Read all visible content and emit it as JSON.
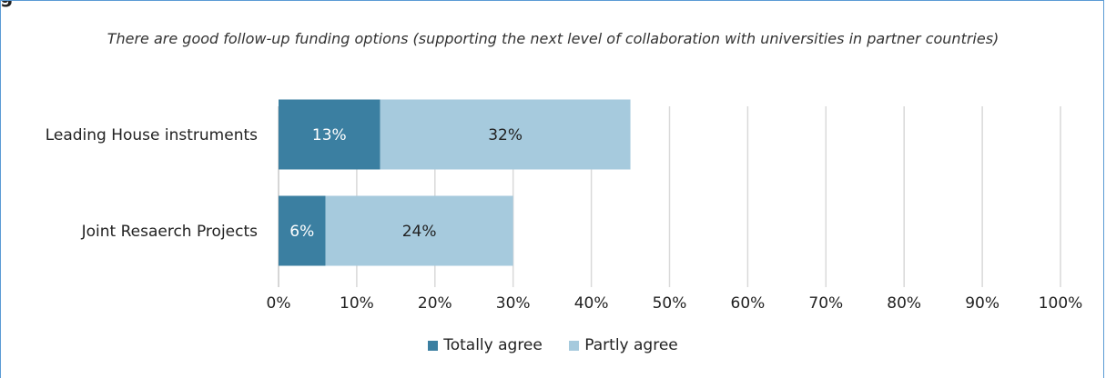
{
  "heading": "g",
  "chart_data": {
    "type": "bar",
    "orientation": "horizontal",
    "stacked": true,
    "title": "There are good follow-up funding options (supporting the next level of collaboration with universities in partner countries)",
    "categories": [
      "Leading House instruments",
      "Joint Resaerch Projects"
    ],
    "series": [
      {
        "name": "Totally agree",
        "values": [
          13,
          6
        ],
        "labels": [
          "13%",
          "6%"
        ],
        "color": "#3b7fa1"
      },
      {
        "name": "Partly agree",
        "values": [
          32,
          24
        ],
        "labels": [
          "32%",
          "24%"
        ],
        "color": "#a6cadd"
      }
    ],
    "xlim": [
      0,
      100
    ],
    "x_ticks": [
      "0%",
      "10%",
      "20%",
      "30%",
      "40%",
      "50%",
      "60%",
      "70%",
      "80%",
      "90%",
      "100%"
    ],
    "grid": true,
    "legend_position": "bottom"
  }
}
